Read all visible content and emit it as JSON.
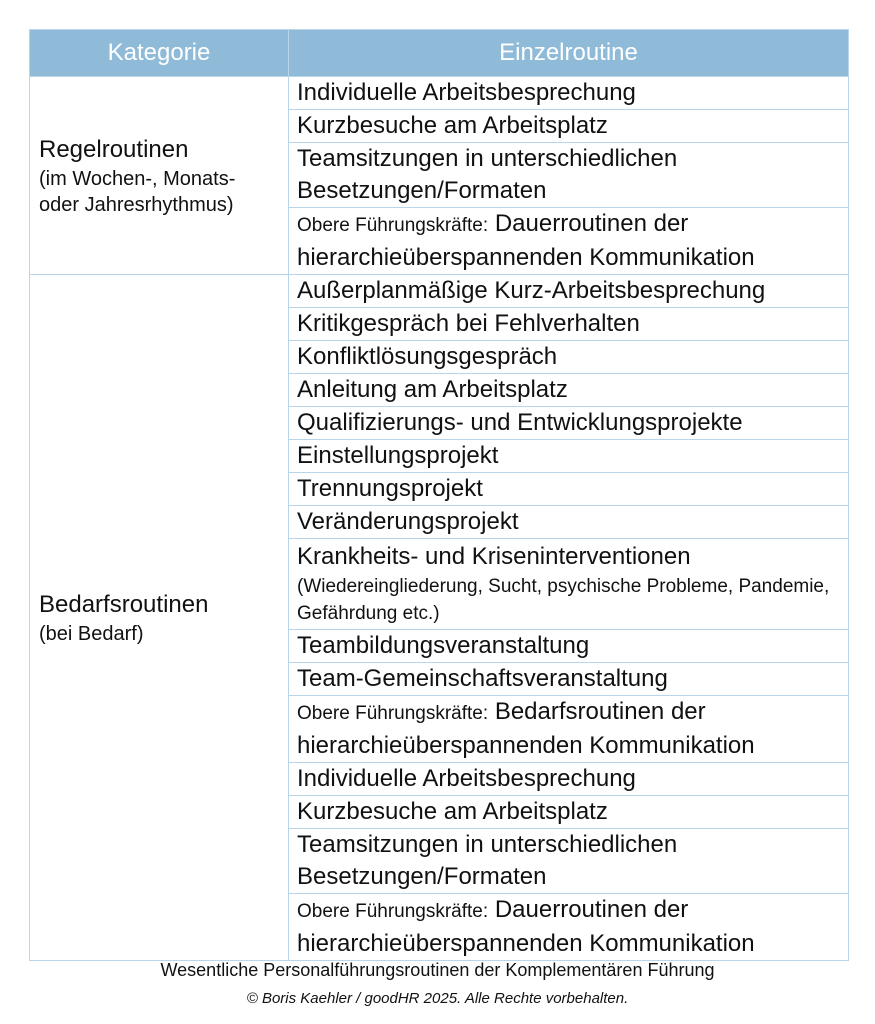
{
  "header": {
    "col1": "Kategorie",
    "col2": "Einzelroutine"
  },
  "groups": [
    {
      "title": "Regelroutinen",
      "subtitle": "(im Wochen-, Monats- oder Jahresrhythmus)",
      "items": [
        {
          "text": "Individuelle Arbeitsbesprechung"
        },
        {
          "text": "Kurzbesuche am Arbeitsplatz"
        },
        {
          "text": "Teamsitzungen in unterschiedlichen Besetzungen/Formaten"
        },
        {
          "prefix": "Obere Führungskräfte:",
          "text": "Dauerroutinen der hierarchieüberspannenden Kommunikation"
        }
      ]
    },
    {
      "title": "Bedarfsroutinen",
      "subtitle": "(bei Bedarf)",
      "items": [
        {
          "text": "Außerplanmäßige Kurz-Arbeitsbesprechung"
        },
        {
          "text": "Kritikgespräch bei Fehlverhalten"
        },
        {
          "text": "Konfliktlösungsgespräch"
        },
        {
          "text": "Anleitung am Arbeitsplatz"
        },
        {
          "text": "Qualifizierungs- und Entwicklungsprojekte"
        },
        {
          "text": "Einstellungsprojekt"
        },
        {
          "text": "Trennungsprojekt"
        },
        {
          "text": "Veränderungsprojekt"
        },
        {
          "text": "Krankheits- und Kriseninterventionen",
          "note": "(Wiedereingliederung, Sucht, psychische Probleme, Pandemie, Gefährdung etc.)"
        },
        {
          "text": "Teambildungsveranstaltung"
        },
        {
          "text": "Team-Gemeinschaftsveranstaltung"
        },
        {
          "prefix": "Obere Führungskräfte:",
          "text": "Bedarfsroutinen der hierarchieüberspannenden Kommunikation"
        },
        {
          "text": "Individuelle Arbeitsbesprechung"
        },
        {
          "text": "Kurzbesuche am Arbeitsplatz"
        },
        {
          "text": "Teamsitzungen in unterschiedlichen Besetzungen/Formaten"
        },
        {
          "prefix": "Obere Führungskräfte:",
          "text": "Dauerroutinen der hierarchieüberspannenden Kommunikation"
        }
      ]
    }
  ],
  "caption": "Wesentliche Personalführungsroutinen der Komplementären Führung",
  "copyright": "© Boris Kaehler / goodHR 2025. Alle Rechte vorbehalten.",
  "colors": {
    "header_bg": "#8fbbd9",
    "border": "#b9d5ea"
  }
}
